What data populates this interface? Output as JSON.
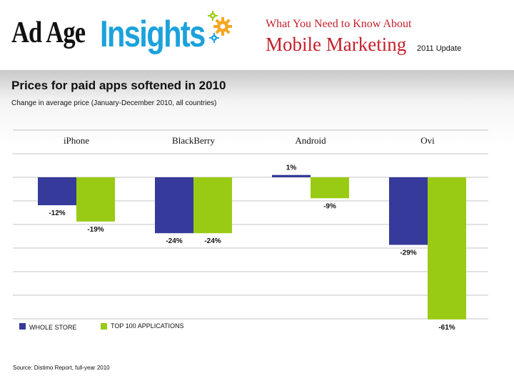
{
  "header": {
    "logo_adage": "Ad Age",
    "logo_insights": "Insights",
    "kicker": "What You Need to Know About",
    "headline": "Mobile Marketing",
    "update": "2011 Update"
  },
  "colors": {
    "whole_store": "#363a9a",
    "top_100": "#9acb14",
    "headline_red": "#c41f2a",
    "insights_blue": "#1ba2dc"
  },
  "legend": {
    "whole_store": "WHOLE STORE",
    "top_100": "TOP 100 APPLICATIONS"
  },
  "source": "Source: Distimo Report, full-year 2010",
  "chart_data": {
    "type": "bar",
    "title": "Prices for paid apps softened in 2010",
    "subtitle": "Change in average price (January-December 2010, all countries)",
    "categories": [
      "iPhone",
      "BlackBerry",
      "Android",
      "Ovi"
    ],
    "series": [
      {
        "name": "WHOLE STORE",
        "values": [
          -12,
          -24,
          1,
          -29
        ],
        "labels": [
          "-12%",
          "-24%",
          "1%",
          "-29%"
        ]
      },
      {
        "name": "TOP 100 APPLICATIONS",
        "values": [
          -19,
          -24,
          -9,
          -61
        ],
        "labels": [
          "-19%",
          "-24%",
          "-9%",
          "-61%"
        ]
      }
    ],
    "xlabel": "",
    "ylabel": "",
    "ylim": [
      -61,
      4
    ],
    "grid": true,
    "legend_position": "bottom-left"
  }
}
